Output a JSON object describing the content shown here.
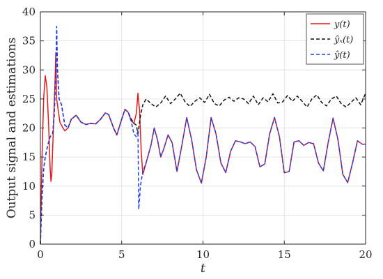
{
  "chart_data": {
    "type": "line",
    "title": "",
    "xlabel": "t",
    "ylabel": "Output signal and estimations",
    "xlim": [
      0,
      20
    ],
    "ylim": [
      0,
      40
    ],
    "x_ticks": [
      0,
      5,
      10,
      15,
      20
    ],
    "y_ticks": [
      0,
      5,
      10,
      15,
      20,
      25,
      30,
      35,
      40
    ],
    "grid": true,
    "legend_position": "top-right",
    "series": [
      {
        "name": "y(t)",
        "legend_label": "𝑦(𝑡)",
        "color": "#e41a1c",
        "dash": "solid",
        "points": [
          [
            0,
            0
          ],
          [
            0.1,
            15
          ],
          [
            0.2,
            25
          ],
          [
            0.3,
            29
          ],
          [
            0.4,
            27
          ],
          [
            0.5,
            21
          ],
          [
            0.6,
            13
          ],
          [
            0.65,
            10.8
          ],
          [
            0.7,
            12
          ],
          [
            0.8,
            20
          ],
          [
            0.9,
            28
          ],
          [
            0.95,
            33
          ],
          [
            1.0,
            25
          ],
          [
            1.1,
            23
          ],
          [
            1.2,
            21
          ],
          [
            1.35,
            20.2
          ],
          [
            1.5,
            19.5
          ],
          [
            1.7,
            20
          ],
          [
            1.9,
            21.5
          ],
          [
            2.2,
            22.2
          ],
          [
            2.5,
            21
          ],
          [
            2.8,
            20.6
          ],
          [
            3.1,
            20.8
          ],
          [
            3.4,
            20.7
          ],
          [
            3.7,
            21.5
          ],
          [
            4.0,
            22.6
          ],
          [
            4.2,
            22.3
          ],
          [
            4.5,
            20
          ],
          [
            4.7,
            18.8
          ],
          [
            5.0,
            21.5
          ],
          [
            5.2,
            23.2
          ],
          [
            5.4,
            22.7
          ],
          [
            5.6,
            21.2
          ],
          [
            5.75,
            20.8
          ],
          [
            5.9,
            22.5
          ],
          [
            6.0,
            26
          ],
          [
            6.1,
            23
          ],
          [
            6.2,
            16
          ],
          [
            6.3,
            12
          ],
          [
            6.4,
            13
          ],
          [
            6.6,
            15
          ],
          [
            6.8,
            17
          ],
          [
            7.0,
            20
          ],
          [
            7.2,
            18
          ],
          [
            7.4,
            15
          ],
          [
            7.6,
            16.5
          ],
          [
            7.85,
            18.8
          ],
          [
            8.1,
            17.5
          ],
          [
            8.4,
            12.5
          ],
          [
            8.7,
            17
          ],
          [
            9.0,
            21.8
          ],
          [
            9.3,
            18
          ],
          [
            9.6,
            12.8
          ],
          [
            9.9,
            10.5
          ],
          [
            10.2,
            15
          ],
          [
            10.5,
            21.8
          ],
          [
            10.8,
            19
          ],
          [
            11.1,
            14
          ],
          [
            11.4,
            12.3
          ],
          [
            11.7,
            16
          ],
          [
            12.0,
            17.8
          ],
          [
            12.3,
            17.6
          ],
          [
            12.6,
            17.3
          ],
          [
            12.9,
            17.6
          ],
          [
            13.2,
            16.8
          ],
          [
            13.5,
            13.3
          ],
          [
            13.8,
            13.8
          ],
          [
            14.1,
            19
          ],
          [
            14.4,
            21.8
          ],
          [
            14.7,
            18.5
          ],
          [
            15.0,
            12.3
          ],
          [
            15.3,
            12.5
          ],
          [
            15.6,
            17.6
          ],
          [
            15.9,
            17.8
          ],
          [
            16.2,
            17
          ],
          [
            16.5,
            17.5
          ],
          [
            16.8,
            17.3
          ],
          [
            17.1,
            14
          ],
          [
            17.4,
            12.6
          ],
          [
            17.7,
            17.5
          ],
          [
            18.0,
            21.7
          ],
          [
            18.3,
            18
          ],
          [
            18.6,
            12
          ],
          [
            18.9,
            10.6
          ],
          [
            19.2,
            14
          ],
          [
            19.5,
            17.8
          ],
          [
            19.8,
            17.2
          ],
          [
            20.0,
            17.2
          ]
        ]
      },
      {
        "name": "ŷx(t)",
        "legend_label": "𝑦̂ₓ(𝑡)",
        "color": "#111111",
        "dash": "5 3",
        "points": [
          [
            0,
            0
          ],
          [
            0.1,
            8
          ],
          [
            0.2,
            13
          ],
          [
            0.3,
            15
          ],
          [
            0.45,
            17
          ],
          [
            0.6,
            18.5
          ],
          [
            0.75,
            19
          ],
          [
            0.85,
            22
          ],
          [
            0.95,
            30
          ],
          [
            1.0,
            37
          ],
          [
            1.05,
            30
          ],
          [
            1.15,
            25
          ],
          [
            1.3,
            24
          ],
          [
            1.5,
            20.5
          ],
          [
            1.7,
            20
          ],
          [
            1.9,
            21.5
          ],
          [
            2.2,
            22.2
          ],
          [
            2.5,
            21
          ],
          [
            2.8,
            20.6
          ],
          [
            3.1,
            20.8
          ],
          [
            3.4,
            20.7
          ],
          [
            3.7,
            21.5
          ],
          [
            4.0,
            22.6
          ],
          [
            4.2,
            22.3
          ],
          [
            4.5,
            20
          ],
          [
            4.7,
            18.8
          ],
          [
            5.0,
            21.5
          ],
          [
            5.2,
            23.2
          ],
          [
            5.4,
            22.7
          ],
          [
            5.6,
            21.5
          ],
          [
            5.75,
            20.8
          ],
          [
            5.9,
            20.5
          ],
          [
            6.0,
            19
          ],
          [
            6.15,
            22
          ],
          [
            6.3,
            24
          ],
          [
            6.5,
            25
          ],
          [
            6.8,
            24.2
          ],
          [
            7.1,
            23.6
          ],
          [
            7.4,
            24.3
          ],
          [
            7.7,
            25.5
          ],
          [
            8.0,
            24.2
          ],
          [
            8.3,
            25
          ],
          [
            8.6,
            26
          ],
          [
            8.9,
            24.5
          ],
          [
            9.2,
            23.7
          ],
          [
            9.5,
            24.6
          ],
          [
            9.8,
            25.2
          ],
          [
            10.1,
            24.4
          ],
          [
            10.4,
            25.8
          ],
          [
            10.7,
            24.2
          ],
          [
            11.0,
            23.8
          ],
          [
            11.3,
            24.8
          ],
          [
            11.6,
            25.3
          ],
          [
            11.9,
            24.6
          ],
          [
            12.2,
            25.2
          ],
          [
            12.5,
            25
          ],
          [
            12.8,
            24.2
          ],
          [
            13.1,
            25.5
          ],
          [
            13.4,
            24
          ],
          [
            13.7,
            25.2
          ],
          [
            14.0,
            24.5
          ],
          [
            14.3,
            25.9
          ],
          [
            14.6,
            24.3
          ],
          [
            14.9,
            24.5
          ],
          [
            15.2,
            25.6
          ],
          [
            15.5,
            24.6
          ],
          [
            15.8,
            25.5
          ],
          [
            16.1,
            24.6
          ],
          [
            16.4,
            23.6
          ],
          [
            16.7,
            25
          ],
          [
            17.0,
            25.7
          ],
          [
            17.3,
            24.4
          ],
          [
            17.6,
            23.8
          ],
          [
            17.9,
            25
          ],
          [
            18.2,
            25.5
          ],
          [
            18.5,
            24.2
          ],
          [
            18.8,
            23.6
          ],
          [
            19.1,
            24.4
          ],
          [
            19.4,
            25.2
          ],
          [
            19.7,
            24
          ],
          [
            20.0,
            26
          ]
        ]
      },
      {
        "name": "ŷ(t)",
        "legend_label": "𝑦̂(𝑡)",
        "color": "#1f3ee8",
        "dash": "5 3",
        "points": [
          [
            0,
            0
          ],
          [
            0.1,
            8
          ],
          [
            0.2,
            13
          ],
          [
            0.3,
            15
          ],
          [
            0.45,
            17
          ],
          [
            0.6,
            18.5
          ],
          [
            0.75,
            19
          ],
          [
            0.85,
            22
          ],
          [
            0.95,
            30
          ],
          [
            1.0,
            37.5
          ],
          [
            1.05,
            30
          ],
          [
            1.15,
            25
          ],
          [
            1.3,
            24
          ],
          [
            1.5,
            20.5
          ],
          [
            1.7,
            20
          ],
          [
            1.9,
            21.5
          ],
          [
            2.2,
            22.2
          ],
          [
            2.5,
            21
          ],
          [
            2.8,
            20.6
          ],
          [
            3.1,
            20.8
          ],
          [
            3.4,
            20.7
          ],
          [
            3.7,
            21.5
          ],
          [
            4.0,
            22.6
          ],
          [
            4.2,
            22.3
          ],
          [
            4.5,
            20
          ],
          [
            4.7,
            18.8
          ],
          [
            5.0,
            21.5
          ],
          [
            5.2,
            23.2
          ],
          [
            5.4,
            22.7
          ],
          [
            5.6,
            21
          ],
          [
            5.75,
            19
          ],
          [
            5.9,
            18.5
          ],
          [
            6.0,
            19.5
          ],
          [
            6.05,
            6
          ],
          [
            6.15,
            10
          ],
          [
            6.3,
            12.5
          ],
          [
            6.5,
            14
          ],
          [
            6.8,
            17
          ],
          [
            7.0,
            20
          ],
          [
            7.2,
            18
          ],
          [
            7.4,
            15
          ],
          [
            7.6,
            16.5
          ],
          [
            7.85,
            18.8
          ],
          [
            8.1,
            17.5
          ],
          [
            8.4,
            12.5
          ],
          [
            8.7,
            17
          ],
          [
            9.0,
            21.8
          ],
          [
            9.3,
            18
          ],
          [
            9.6,
            12.8
          ],
          [
            9.9,
            10.5
          ],
          [
            10.2,
            15
          ],
          [
            10.5,
            21.8
          ],
          [
            10.8,
            19
          ],
          [
            11.1,
            14
          ],
          [
            11.4,
            12.3
          ],
          [
            11.7,
            16
          ],
          [
            12.0,
            17.8
          ],
          [
            12.3,
            17.6
          ],
          [
            12.6,
            17.3
          ],
          [
            12.9,
            17.6
          ],
          [
            13.2,
            16.8
          ],
          [
            13.5,
            13.3
          ],
          [
            13.8,
            13.8
          ],
          [
            14.1,
            19
          ],
          [
            14.4,
            21.8
          ],
          [
            14.7,
            18.5
          ],
          [
            15.0,
            12.3
          ],
          [
            15.3,
            12.5
          ],
          [
            15.6,
            17.6
          ],
          [
            15.9,
            17.8
          ],
          [
            16.2,
            17
          ],
          [
            16.5,
            17.5
          ],
          [
            16.8,
            17.3
          ],
          [
            17.1,
            14
          ],
          [
            17.4,
            12.6
          ],
          [
            17.7,
            17.5
          ],
          [
            18.0,
            21.7
          ],
          [
            18.3,
            18
          ],
          [
            18.6,
            12
          ],
          [
            18.9,
            10.6
          ],
          [
            19.2,
            14
          ],
          [
            19.5,
            17.8
          ],
          [
            19.8,
            17.2
          ],
          [
            20.0,
            17.2
          ]
        ]
      }
    ]
  }
}
